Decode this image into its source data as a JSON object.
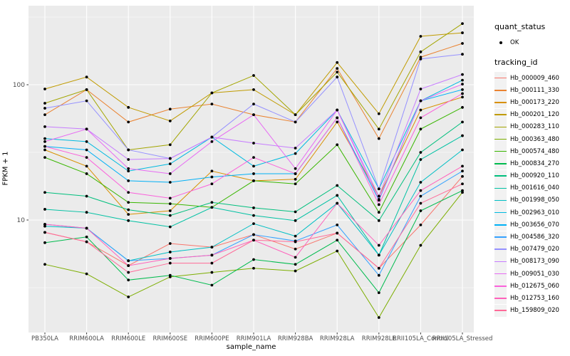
{
  "figure": {
    "background": "#ffffff",
    "panel_bg": "#ebebeb",
    "grid_color": "#ffffff",
    "tick_text_color": "#4d4d4d",
    "point_color": "#000000"
  },
  "legend": {
    "quant_status_title": "quant_status",
    "ok_label": "OK",
    "tracking_id_title": "tracking_id",
    "key_bg": "#f2f2f2"
  },
  "chart_data": {
    "type": "line",
    "title": "",
    "xlabel": "sample_name",
    "ylabel": "FPKM + 1",
    "x_axis": {
      "label": "sample_name",
      "categories": [
        "PB350LA",
        "RRIM600LA",
        "RRIM600LE",
        "RRIM600SE",
        "RRIM600PE",
        "RRIM901LA",
        "RRIM928BA",
        "RRIM928LA",
        "RRIM928LE",
        "RRII105LA_Control",
        "RRII105LA_Stressed"
      ]
    },
    "y_axis": {
      "label": "FPKM + 1",
      "scale": "log10",
      "ticks": [
        10,
        100
      ],
      "minor_ticks": [
        3.162,
        31.62,
        316.2
      ],
      "range_approx": [
        1.5,
        385
      ]
    },
    "quant_status": "OK",
    "legend_position": "right",
    "grid": true,
    "series": [
      {
        "name": "Hb_000009_460",
        "color": "#F8766D",
        "values": [
          8.1,
          6.9,
          4.6,
          6.7,
          6.3,
          7.8,
          6.1,
          8.0,
          4.4,
          9.2,
          21
        ]
      },
      {
        "name": "Hb_000111_330",
        "color": "#EA8331",
        "values": [
          60,
          92,
          53,
          66,
          72,
          60,
          53,
          132,
          40,
          160,
          202
        ]
      },
      {
        "name": "Hb_000173_220",
        "color": "#D89000",
        "values": [
          33,
          25,
          11,
          11.7,
          23,
          19.5,
          20,
          53,
          15,
          65,
          81
        ]
      },
      {
        "name": "Hb_000201_120",
        "color": "#C09B00",
        "values": [
          93,
          114,
          68,
          54,
          87,
          92,
          60,
          146,
          61,
          228,
          242
        ]
      },
      {
        "name": "Hb_000283_110",
        "color": "#A3A500",
        "values": [
          73,
          92,
          33,
          36,
          87,
          117,
          60,
          124,
          47,
          175,
          283
        ]
      },
      {
        "name": "Hb_000363_480",
        "color": "#7CAE00",
        "values": [
          4.7,
          4.0,
          2.7,
          3.8,
          4.1,
          4.4,
          4.2,
          5.9,
          1.9,
          6.5,
          16
        ]
      },
      {
        "name": "Hb_000574_480",
        "color": "#39B600",
        "values": [
          29,
          22,
          13.5,
          13.2,
          12.4,
          19.5,
          18.5,
          36,
          11.4,
          47,
          68
        ]
      },
      {
        "name": "Hb_000834_270",
        "color": "#00BB4E",
        "values": [
          6.8,
          7.5,
          3.6,
          3.9,
          3.3,
          5.1,
          4.7,
          7.1,
          2.9,
          11.7,
          16.5
        ]
      },
      {
        "name": "Hb_000920_110",
        "color": "#00BF7D",
        "values": [
          16,
          15,
          11.9,
          10.8,
          13.5,
          12.3,
          11.5,
          18,
          9.9,
          31.6,
          53
        ]
      },
      {
        "name": "Hb_001616_040",
        "color": "#00C1A3",
        "values": [
          12,
          11.4,
          9.9,
          8.9,
          12.4,
          10.8,
          9.9,
          15.2,
          5.5,
          28,
          42
        ]
      },
      {
        "name": "Hb_001998_050",
        "color": "#00BFC4",
        "values": [
          9.0,
          8.7,
          5.0,
          5.8,
          6.3,
          9.4,
          7.6,
          13.3,
          5.5,
          19,
          33
        ]
      },
      {
        "name": "Hb_002963_010",
        "color": "#00BAE0",
        "values": [
          40,
          38,
          23,
          26,
          41,
          25,
          31,
          65,
          17,
          76,
          108
        ]
      },
      {
        "name": "Hb_003656_070",
        "color": "#00B0F6",
        "values": [
          35,
          33,
          19.5,
          19,
          20.8,
          22,
          22,
          57,
          14,
          76,
          92
        ]
      },
      {
        "name": "Hb_004586_320",
        "color": "#35A2FF",
        "values": [
          9.3,
          8.7,
          5.0,
          5.2,
          5.5,
          7.8,
          7.0,
          9.2,
          3.9,
          15,
          23
        ]
      },
      {
        "name": "Hb_007479_020",
        "color": "#9590FF",
        "values": [
          67,
          76,
          33,
          28.5,
          41,
          72,
          53,
          114,
          17,
          155,
          168
        ]
      },
      {
        "name": "Hb_008173_090",
        "color": "#C77CFF",
        "values": [
          49,
          47,
          28,
          28.5,
          41,
          37,
          34,
          65,
          15,
          93,
          119
        ]
      },
      {
        "name": "Hb_009051_030",
        "color": "#E76BF3",
        "values": [
          38,
          47,
          24,
          22,
          38,
          60,
          24,
          65,
          14.2,
          76,
          101
        ]
      },
      {
        "name": "Hb_012675_060",
        "color": "#FA62DB",
        "values": [
          35,
          29,
          16,
          14.5,
          18.5,
          29,
          22,
          57,
          13,
          57,
          86
        ]
      },
      {
        "name": "Hb_012753_160",
        "color": "#FF62BC",
        "values": [
          9.3,
          8.7,
          4.6,
          5.2,
          5.5,
          7.1,
          5.3,
          13.3,
          6.5,
          16.5,
          25
        ]
      },
      {
        "name": "Hb_159809_020",
        "color": "#FF6A98",
        "values": [
          8.1,
          6.9,
          4.1,
          4.8,
          4.8,
          7.1,
          6.9,
          8.0,
          4.4,
          13.3,
          18.5
        ]
      }
    ]
  }
}
